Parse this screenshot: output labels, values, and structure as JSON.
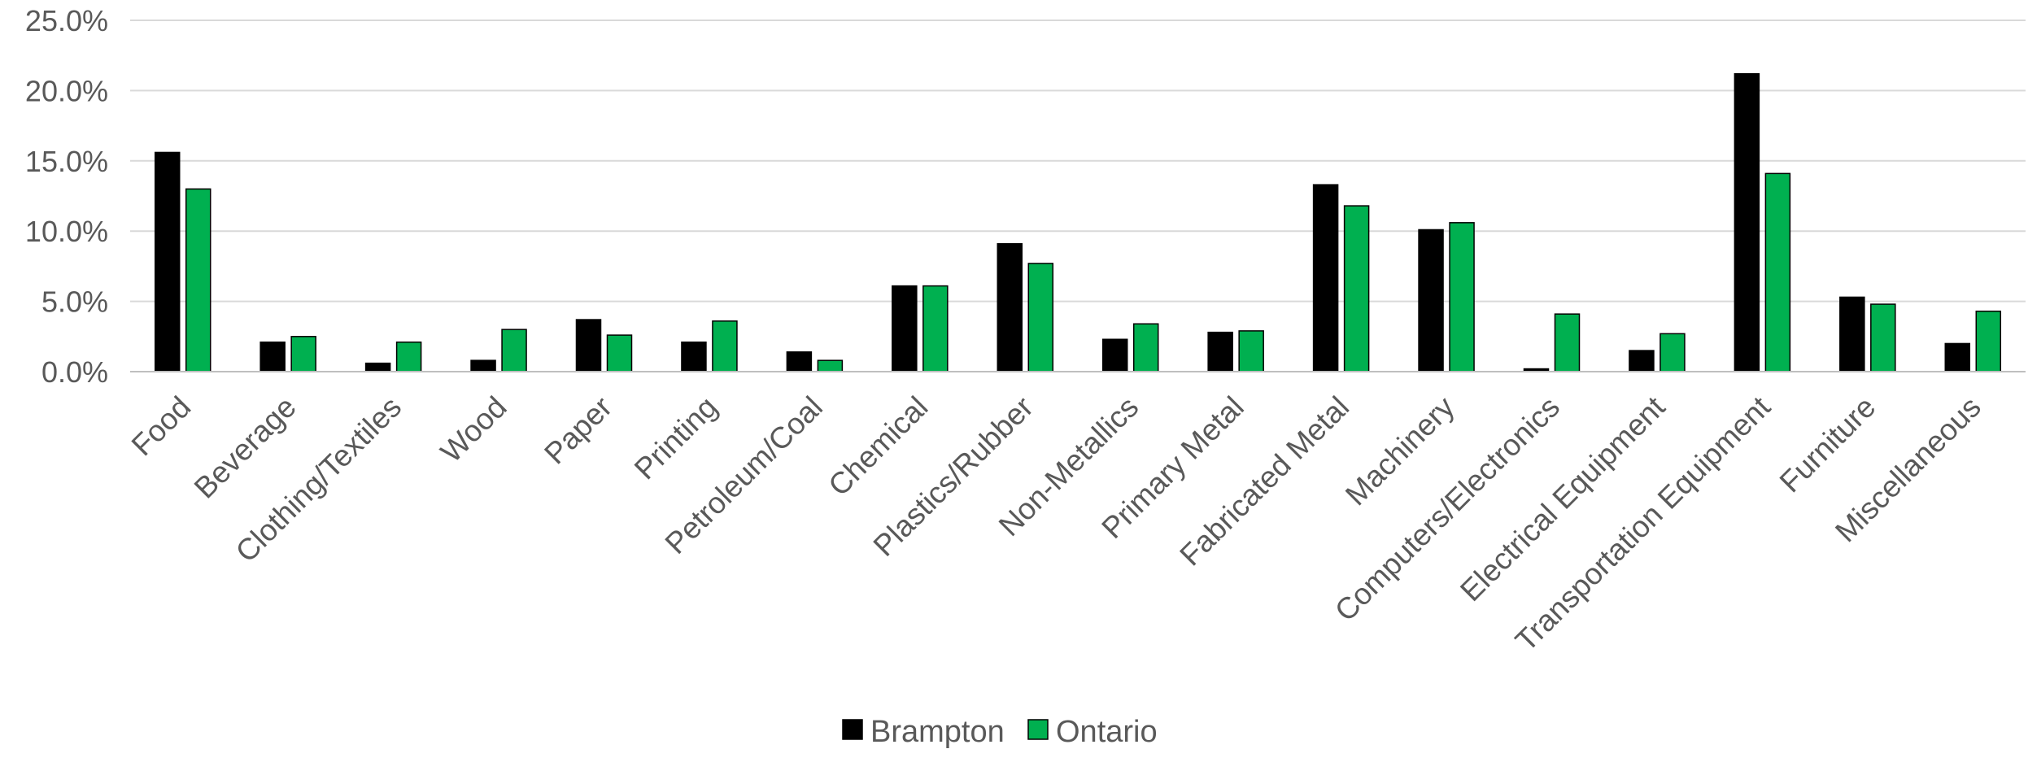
{
  "chart_data": {
    "type": "bar",
    "title": "",
    "xlabel": "",
    "ylabel": "",
    "ylim": [
      0,
      25
    ],
    "yticks": [
      0,
      5,
      10,
      15,
      20,
      25
    ],
    "ytick_labels": [
      "0.0%",
      "5.0%",
      "10.0%",
      "15.0%",
      "20.0%",
      "25.0%"
    ],
    "grid": true,
    "legend_position": "bottom",
    "categories": [
      "Food",
      "Beverage",
      "Clothing/Textiles",
      "Wood",
      "Paper",
      "Printing",
      "Petroleum/Coal",
      "Chemical",
      "Plastics/Rubber",
      "Non-Metallics",
      "Primary Metal",
      "Fabricated Metal",
      "Machinery",
      "Computers/Electronics",
      "Electrical Equipment",
      "Transportation Equipment",
      "Furniture",
      "Miscellaneous"
    ],
    "series": [
      {
        "name": "Brampton",
        "color": "#000000",
        "values": [
          15.6,
          2.1,
          0.6,
          0.8,
          3.7,
          2.1,
          1.4,
          6.1,
          9.1,
          2.3,
          2.8,
          13.3,
          10.1,
          0.2,
          1.5,
          21.2,
          5.3,
          2.0
        ]
      },
      {
        "name": "Ontario",
        "color": "#00b050",
        "values": [
          13.0,
          2.5,
          2.1,
          3.0,
          2.6,
          3.6,
          0.8,
          6.1,
          7.7,
          3.4,
          2.9,
          11.8,
          10.6,
          4.1,
          2.7,
          14.1,
          4.8,
          4.3
        ]
      }
    ]
  }
}
